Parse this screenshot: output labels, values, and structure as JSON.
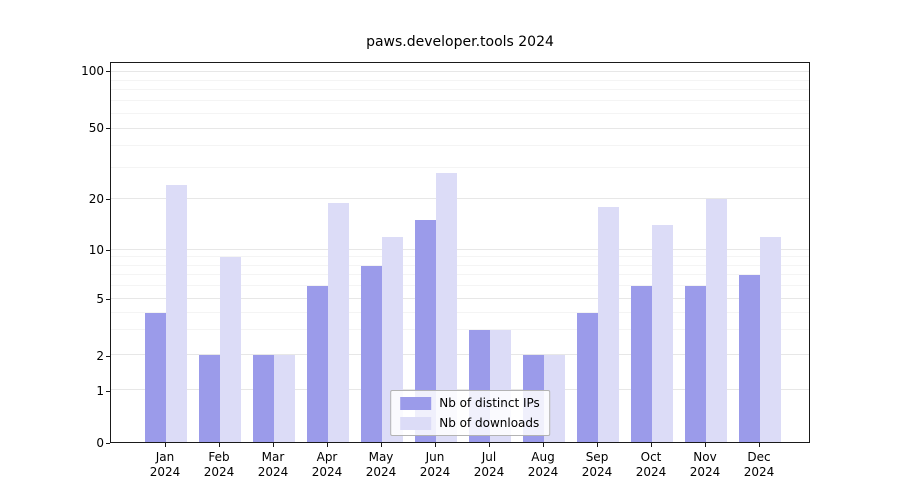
{
  "chart_data": {
    "type": "bar",
    "title": "paws.developer.tools 2024",
    "categories": [
      "Jan",
      "Feb",
      "Mar",
      "Apr",
      "May",
      "Jun",
      "Jul",
      "Aug",
      "Sep",
      "Oct",
      "Nov",
      "Dec"
    ],
    "category_year": "2024",
    "series": [
      {
        "name": "Nb of distinct IPs",
        "color": "#9b9bea",
        "values": [
          4,
          2,
          2,
          6,
          8,
          15,
          3,
          2,
          4,
          6,
          6,
          7
        ]
      },
      {
        "name": "Nb of downloads",
        "color": "#dcdcf7",
        "values": [
          24,
          9,
          2,
          19,
          12,
          28,
          3,
          2,
          18,
          14,
          20,
          12
        ]
      }
    ],
    "yticks": [
      0,
      1,
      2,
      5,
      10,
      20,
      50,
      100
    ],
    "ylim": [
      0,
      115
    ],
    "yscale": "log-like (linear 0-1, logarithmic above 1)",
    "grid": true,
    "legend_position": "lower center"
  }
}
